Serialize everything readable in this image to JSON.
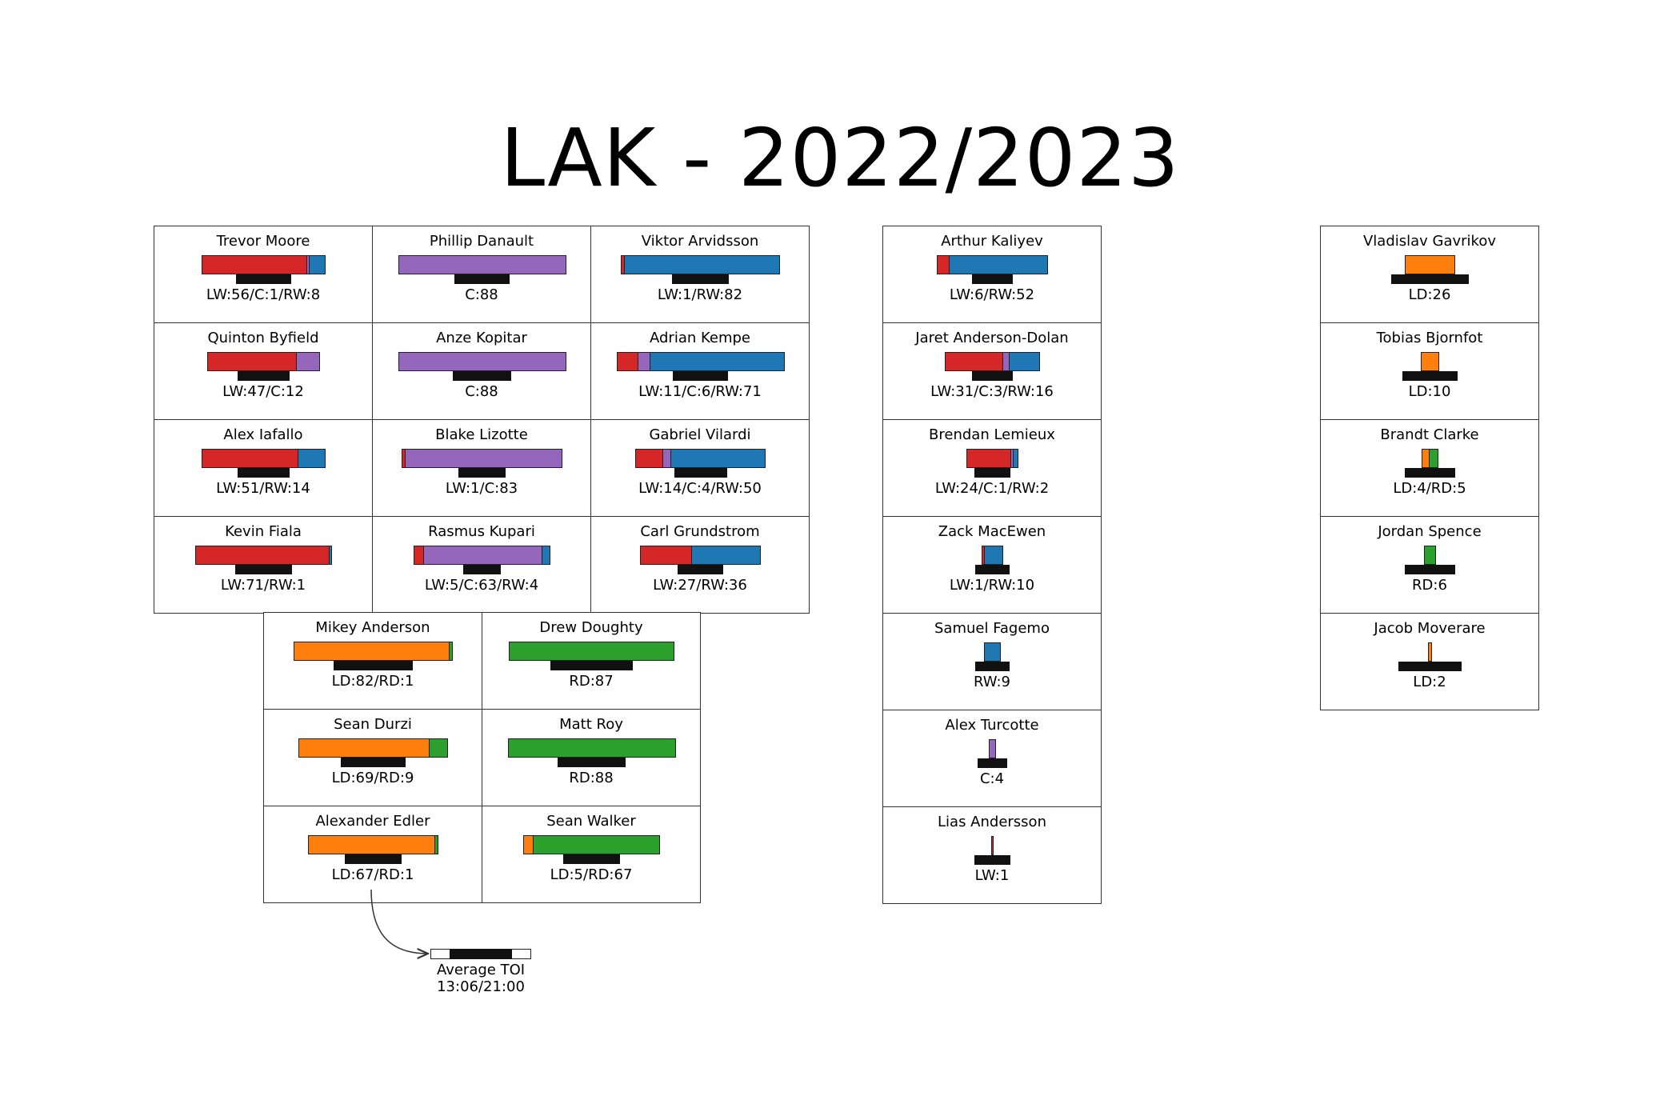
{
  "chart_data": {
    "type": "table",
    "title": "LAK - 2022/2023",
    "max_games": 88,
    "max_toi_seconds": 1260,
    "colors": {
      "LW": "#d62728",
      "C": "#9467bd",
      "RW": "#1f77b4",
      "LD": "#ff7f0e",
      "RD": "#2ca02c",
      "toi": "#111111"
    },
    "legend": {
      "label": "Average TOI",
      "value": "13:06/21:00",
      "fill_fraction": 0.624
    },
    "groups": [
      {
        "name": "forwards",
        "players": [
          {
            "name": "Trevor Moore",
            "label": "LW:56/C:1/RW:8",
            "toi_fraction": 0.62,
            "positions": [
              {
                "pos": "LW",
                "games": 56
              },
              {
                "pos": "C",
                "games": 1
              },
              {
                "pos": "RW",
                "games": 8
              }
            ]
          },
          {
            "name": "Phillip Danault",
            "label": "C:88",
            "toi_fraction": 0.62,
            "positions": [
              {
                "pos": "C",
                "games": 88
              }
            ]
          },
          {
            "name": "Viktor Arvidsson",
            "label": "LW:1/RW:82",
            "toi_fraction": 0.65,
            "positions": [
              {
                "pos": "LW",
                "games": 1
              },
              {
                "pos": "RW",
                "games": 82
              }
            ]
          },
          {
            "name": "Quinton Byfield",
            "label": "LW:47/C:12",
            "toi_fraction": 0.59,
            "positions": [
              {
                "pos": "LW",
                "games": 47
              },
              {
                "pos": "C",
                "games": 12
              }
            ]
          },
          {
            "name": "Anze Kopitar",
            "label": "C:88",
            "toi_fraction": 0.66,
            "positions": [
              {
                "pos": "C",
                "games": 88
              }
            ]
          },
          {
            "name": "Adrian Kempe",
            "label": "LW:11/C:6/RW:71",
            "toi_fraction": 0.63,
            "positions": [
              {
                "pos": "LW",
                "games": 11
              },
              {
                "pos": "C",
                "games": 6
              },
              {
                "pos": "RW",
                "games": 71
              }
            ]
          },
          {
            "name": "Alex Iafallo",
            "label": "LW:51/RW:14",
            "toi_fraction": 0.59,
            "positions": [
              {
                "pos": "LW",
                "games": 51
              },
              {
                "pos": "RW",
                "games": 14
              }
            ]
          },
          {
            "name": "Blake Lizotte",
            "label": "LW:1/C:83",
            "toi_fraction": 0.53,
            "positions": [
              {
                "pos": "LW",
                "games": 1
              },
              {
                "pos": "C",
                "games": 83
              }
            ]
          },
          {
            "name": "Gabriel Vilardi",
            "label": "LW:14/C:4/RW:50",
            "toi_fraction": 0.6,
            "positions": [
              {
                "pos": "LW",
                "games": 14
              },
              {
                "pos": "C",
                "games": 4
              },
              {
                "pos": "RW",
                "games": 50
              }
            ]
          },
          {
            "name": "Kevin Fiala",
            "label": "LW:71/RW:1",
            "toi_fraction": 0.65,
            "positions": [
              {
                "pos": "LW",
                "games": 71
              },
              {
                "pos": "RW",
                "games": 1
              }
            ]
          },
          {
            "name": "Rasmus Kupari",
            "label": "LW:5/C:63/RW:4",
            "toi_fraction": 0.43,
            "positions": [
              {
                "pos": "LW",
                "games": 5
              },
              {
                "pos": "C",
                "games": 63
              },
              {
                "pos": "RW",
                "games": 4
              }
            ]
          },
          {
            "name": "Carl Grundstrom",
            "label": "LW:27/RW:36",
            "toi_fraction": 0.51,
            "positions": [
              {
                "pos": "LW",
                "games": 27
              },
              {
                "pos": "RW",
                "games": 36
              }
            ]
          }
        ]
      },
      {
        "name": "defense",
        "players": [
          {
            "name": "Mikey Anderson",
            "label": "LD:82/RD:1",
            "toi_fraction": 0.9,
            "positions": [
              {
                "pos": "LD",
                "games": 82
              },
              {
                "pos": "RD",
                "games": 1
              }
            ]
          },
          {
            "name": "Drew Doughty",
            "label": "RD:87",
            "toi_fraction": 0.94,
            "positions": [
              {
                "pos": "RD",
                "games": 87
              }
            ]
          },
          {
            "name": "Sean Durzi",
            "label": "LD:69/RD:9",
            "toi_fraction": 0.74,
            "positions": [
              {
                "pos": "LD",
                "games": 69
              },
              {
                "pos": "RD",
                "games": 9
              }
            ]
          },
          {
            "name": "Matt Roy",
            "label": "RD:88",
            "toi_fraction": 0.77,
            "positions": [
              {
                "pos": "RD",
                "games": 88
              }
            ]
          },
          {
            "name": "Alexander Edler",
            "label": "LD:67/RD:1",
            "toi_fraction": 0.64,
            "positions": [
              {
                "pos": "LD",
                "games": 67
              },
              {
                "pos": "RD",
                "games": 1
              }
            ]
          },
          {
            "name": "Sean Walker",
            "label": "LD:5/RD:67",
            "toi_fraction": 0.65,
            "positions": [
              {
                "pos": "LD",
                "games": 5
              },
              {
                "pos": "RD",
                "games": 67
              }
            ]
          }
        ]
      },
      {
        "name": "extra-forwards",
        "players": [
          {
            "name": "Arthur Kaliyev",
            "label": "LW:6/RW:52",
            "toi_fraction": 0.46,
            "positions": [
              {
                "pos": "LW",
                "games": 6
              },
              {
                "pos": "RW",
                "games": 52
              }
            ]
          },
          {
            "name": "Jaret Anderson-Dolan",
            "label": "LW:31/C:3/RW:16",
            "toi_fraction": 0.46,
            "positions": [
              {
                "pos": "LW",
                "games": 31
              },
              {
                "pos": "C",
                "games": 3
              },
              {
                "pos": "RW",
                "games": 16
              }
            ]
          },
          {
            "name": "Brendan Lemieux",
            "label": "LW:24/C:1/RW:2",
            "toi_fraction": 0.41,
            "positions": [
              {
                "pos": "LW",
                "games": 24
              },
              {
                "pos": "C",
                "games": 1
              },
              {
                "pos": "RW",
                "games": 2
              }
            ]
          },
          {
            "name": "Zack MacEwen",
            "label": "LW:1/RW:10",
            "toi_fraction": 0.39,
            "positions": [
              {
                "pos": "LW",
                "games": 1
              },
              {
                "pos": "RW",
                "games": 10
              }
            ]
          },
          {
            "name": "Samuel Fagemo",
            "label": "RW:9",
            "toi_fraction": 0.39,
            "positions": [
              {
                "pos": "RW",
                "games": 9
              }
            ]
          },
          {
            "name": "Alex Turcotte",
            "label": "C:4",
            "toi_fraction": 0.34,
            "positions": [
              {
                "pos": "C",
                "games": 4
              }
            ]
          },
          {
            "name": "Lias Andersson",
            "label": "LW:1",
            "toi_fraction": 0.41,
            "positions": [
              {
                "pos": "LW",
                "games": 1
              }
            ]
          }
        ]
      },
      {
        "name": "extra-defense",
        "players": [
          {
            "name": "Vladislav Gavrikov",
            "label": "LD:26",
            "toi_fraction": 0.88,
            "positions": [
              {
                "pos": "LD",
                "games": 26
              }
            ]
          },
          {
            "name": "Tobias Bjornfot",
            "label": "LD:10",
            "toi_fraction": 0.63,
            "positions": [
              {
                "pos": "LD",
                "games": 10
              }
            ]
          },
          {
            "name": "Brandt Clarke",
            "label": "LD:4/RD:5",
            "toi_fraction": 0.58,
            "positions": [
              {
                "pos": "LD",
                "games": 4
              },
              {
                "pos": "RD",
                "games": 5
              }
            ]
          },
          {
            "name": "Jordan Spence",
            "label": "RD:6",
            "toi_fraction": 0.58,
            "positions": [
              {
                "pos": "RD",
                "games": 6
              }
            ]
          },
          {
            "name": "Jacob Moverare",
            "label": "LD:2",
            "toi_fraction": 0.71,
            "positions": [
              {
                "pos": "LD",
                "games": 2
              }
            ]
          }
        ]
      }
    ]
  }
}
